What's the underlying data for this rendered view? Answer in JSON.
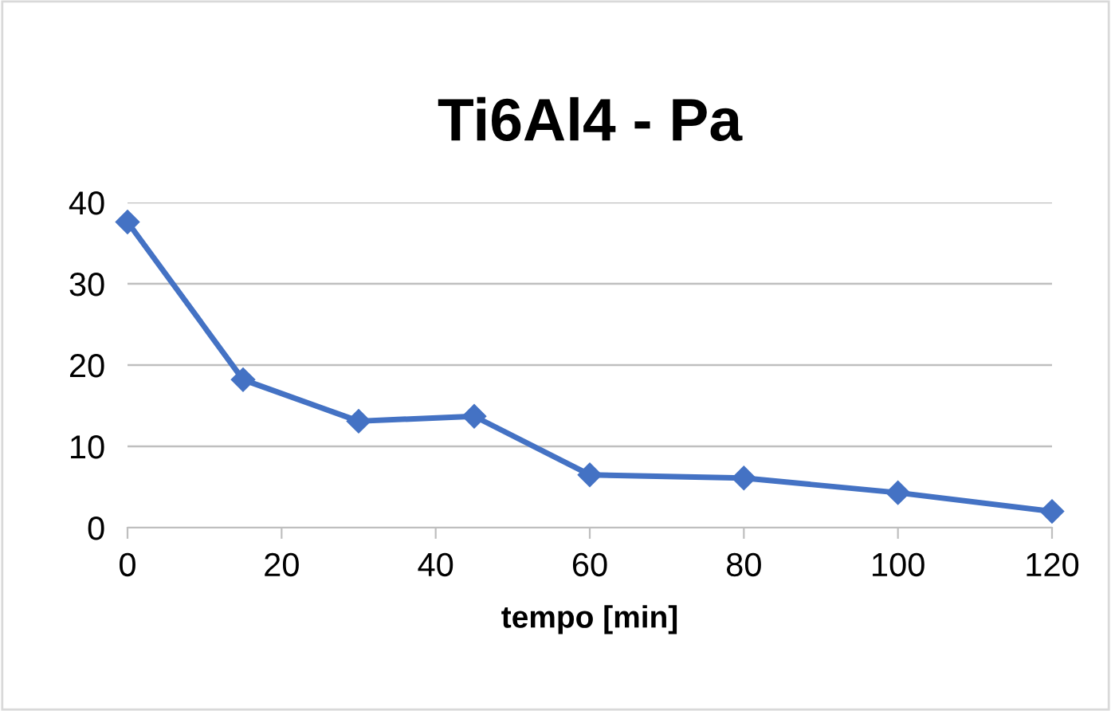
{
  "chart_data": {
    "type": "line",
    "title": "Ti6Al4 - Pa",
    "xlabel": "tempo [min]",
    "x": [
      0,
      15,
      30,
      45,
      60,
      80,
      100,
      120
    ],
    "series": [
      {
        "color": "#4472c4",
        "values": [
          37.6,
          18.2,
          13.1,
          13.7,
          6.5,
          6.1,
          4.3,
          2.0
        ]
      }
    ],
    "xlim": [
      0,
      120
    ],
    "xticks": [
      0,
      20,
      40,
      60,
      80,
      100,
      120
    ],
    "ylim": [
      0,
      40
    ],
    "yticks": [
      0,
      10,
      20,
      30,
      40
    ],
    "grid": "y",
    "marker": "diamond",
    "line_style": "solid",
    "legend": false
  }
}
